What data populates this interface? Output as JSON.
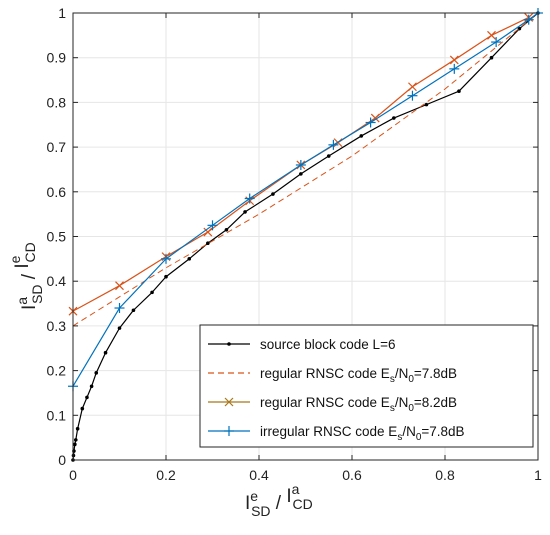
{
  "chart_data": {
    "type": "line",
    "xlabel_parts": {
      "base1": "I",
      "sup1": "e",
      "sub1": "SD",
      "sep": " / ",
      "base2": "I",
      "sup2": "a",
      "sub2": "CD"
    },
    "ylabel_parts": {
      "base1": "I",
      "sup1": "a",
      "sub1": "SD",
      "sep": " / ",
      "base2": "I",
      "sup2": "e",
      "sub2": "CD"
    },
    "xlim": [
      0,
      1
    ],
    "ylim": [
      0,
      1
    ],
    "xticks": [
      "0",
      "0.2",
      "0.4",
      "0.6",
      "0.8",
      "1"
    ],
    "yticks": [
      "0",
      "0.1",
      "0.2",
      "0.3",
      "0.4",
      "0.5",
      "0.6",
      "0.7",
      "0.8",
      "0.9",
      "1"
    ],
    "grid": true,
    "legend_position": "bottom-right",
    "series": [
      {
        "name": "source block code L=6",
        "legend_parts": [
          {
            "t": "source block code L=6"
          }
        ],
        "color": "#000000",
        "style": "solid",
        "marker": "dot",
        "x": [
          0,
          0.001,
          0.002,
          0.004,
          0.006,
          0.01,
          0.02,
          0.03,
          0.04,
          0.05,
          0.07,
          0.1,
          0.13,
          0.17,
          0.2,
          0.25,
          0.29,
          0.33,
          0.37,
          0.43,
          0.49,
          0.55,
          0.62,
          0.69,
          0.76,
          0.83,
          0.9,
          0.96,
          1
        ],
        "y": [
          0,
          0.01,
          0.02,
          0.035,
          0.045,
          0.07,
          0.115,
          0.14,
          0.165,
          0.195,
          0.24,
          0.295,
          0.335,
          0.375,
          0.41,
          0.45,
          0.485,
          0.515,
          0.555,
          0.595,
          0.64,
          0.68,
          0.725,
          0.765,
          0.795,
          0.825,
          0.9,
          0.965,
          1
        ]
      },
      {
        "name": "regular RNSC code Es/N0=7.8dB",
        "legend_parts": [
          {
            "t": "regular RNSC code E"
          },
          {
            "t": "s",
            "sub": true
          },
          {
            "t": "/N"
          },
          {
            "t": "0",
            "sub": true
          },
          {
            "t": "=7.8dB"
          }
        ],
        "color": "#d95319",
        "style": "dashed",
        "marker": "none",
        "x": [
          0,
          0.2,
          0.4,
          0.6,
          0.8,
          1
        ],
        "y": [
          0.3,
          0.43,
          0.55,
          0.68,
          0.83,
          1
        ]
      },
      {
        "name": "regular RNSC code Es/N0=8.2dB",
        "legend_parts": [
          {
            "t": "regular RNSC code E"
          },
          {
            "t": "s",
            "sub": true
          },
          {
            "t": "/N"
          },
          {
            "t": "0",
            "sub": true
          },
          {
            "t": "=8.2dB"
          }
        ],
        "color": "#d95319",
        "legend_color": "#a8781a",
        "style": "solid",
        "marker": "x",
        "x": [
          0,
          0.1,
          0.2,
          0.29,
          0.38,
          0.49,
          0.57,
          0.65,
          0.73,
          0.82,
          0.9,
          0.98
        ],
        "y": [
          0.333,
          0.39,
          0.455,
          0.51,
          0.58,
          0.66,
          0.71,
          0.765,
          0.835,
          0.895,
          0.95,
          0.99
        ]
      },
      {
        "name": "irregular RNSC code Es/N0=7.8dB",
        "legend_parts": [
          {
            "t": "irregular RNSC code E"
          },
          {
            "t": "s",
            "sub": true
          },
          {
            "t": "/N"
          },
          {
            "t": "0",
            "sub": true
          },
          {
            "t": "=7.8dB"
          }
        ],
        "color": "#0072bd",
        "style": "solid",
        "marker": "plus",
        "x": [
          0,
          0.1,
          0.2,
          0.3,
          0.38,
          0.49,
          0.56,
          0.64,
          0.73,
          0.82,
          0.91,
          0.98,
          1
        ],
        "y": [
          0.165,
          0.34,
          0.45,
          0.525,
          0.585,
          0.66,
          0.705,
          0.755,
          0.815,
          0.875,
          0.935,
          0.985,
          1
        ]
      }
    ]
  }
}
